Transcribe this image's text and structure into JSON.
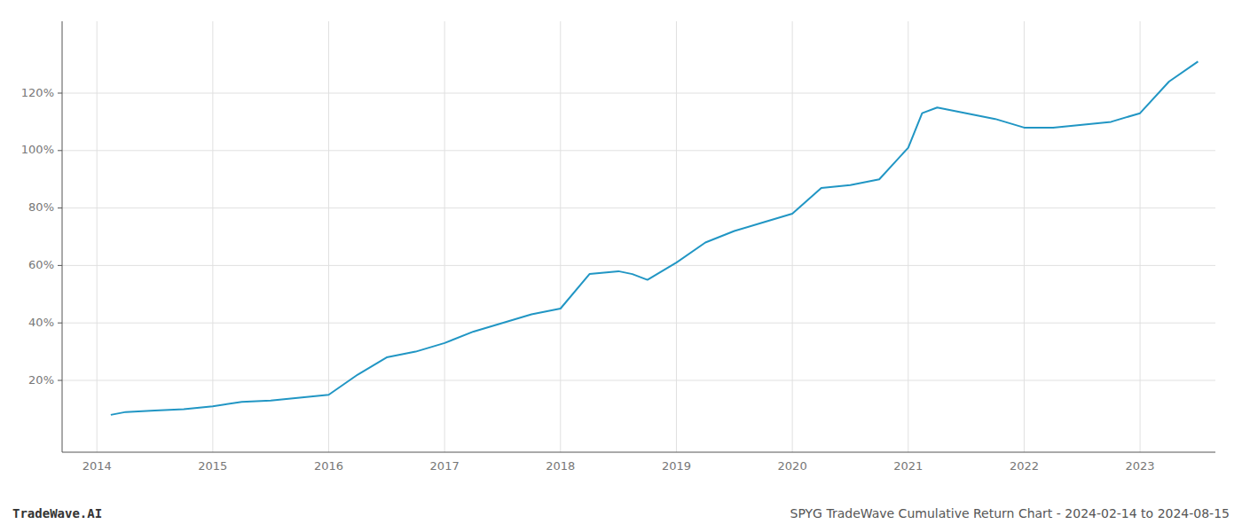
{
  "chart_data": {
    "type": "line",
    "title": "SPYG TradeWave Cumulative Return Chart - 2024-02-14 to 2024-08-15",
    "annotations": [
      "TradeWave.AI"
    ],
    "x": [
      2014.12,
      2014.25,
      2014.5,
      2014.75,
      2015.0,
      2015.25,
      2015.5,
      2015.75,
      2016.0,
      2016.25,
      2016.5,
      2016.75,
      2017.0,
      2017.25,
      2017.5,
      2017.75,
      2018.0,
      2018.25,
      2018.5,
      2018.62,
      2018.75,
      2019.0,
      2019.25,
      2019.5,
      2019.75,
      2020.0,
      2020.25,
      2020.5,
      2020.75,
      2021.0,
      2021.12,
      2021.25,
      2021.5,
      2021.75,
      2022.0,
      2022.25,
      2022.5,
      2022.75,
      2023.0,
      2023.25,
      2023.5
    ],
    "values": [
      8,
      9,
      9.5,
      10,
      11,
      12.5,
      13,
      14,
      15,
      22,
      28,
      30,
      33,
      37,
      40,
      43,
      45,
      57,
      58,
      57,
      55,
      61,
      68,
      72,
      75,
      78,
      87,
      88,
      90,
      101,
      113,
      115,
      113,
      111,
      108,
      108,
      109,
      110,
      113,
      124,
      131
    ],
    "color": "#2196c4",
    "xlim": [
      2013.7,
      2023.65
    ],
    "xticks": [
      2014,
      2015,
      2016,
      2017,
      2018,
      2019,
      2020,
      2021,
      2022,
      2023
    ],
    "ylim": [
      -5,
      145
    ],
    "yticks": [
      {
        "value": 20,
        "label": "20%"
      },
      {
        "value": 40,
        "label": "40%"
      },
      {
        "value": 60,
        "label": "60%"
      },
      {
        "value": 80,
        "label": "80%"
      },
      {
        "value": 100,
        "label": "100%"
      },
      {
        "value": 120,
        "label": "120%"
      }
    ],
    "grid": true
  }
}
